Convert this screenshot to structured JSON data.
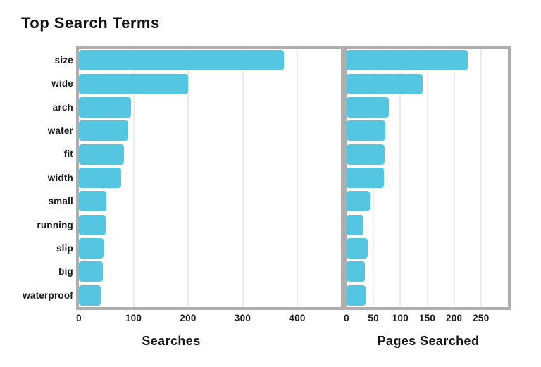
{
  "title": "Top Search Terms",
  "chart_data": {
    "type": "bar",
    "orientation": "horizontal",
    "title": "Top Search Terms",
    "categories": [
      "size",
      "wide",
      "arch",
      "water",
      "fit",
      "width",
      "small",
      "running",
      "slip",
      "big",
      "waterproof"
    ],
    "panels": [
      {
        "name": "searches",
        "xlabel": "Searches",
        "xlim": [
          0,
          480
        ],
        "xticks": [
          0,
          100,
          200,
          300,
          400
        ],
        "values": [
          375,
          200,
          95,
          90,
          82,
          78,
          50,
          49,
          45,
          44,
          40
        ]
      },
      {
        "name": "pages-searched",
        "xlabel": "Pages Searched",
        "xlim": [
          0,
          300
        ],
        "xticks": [
          0,
          50,
          100,
          150,
          200,
          250
        ],
        "values": [
          225,
          142,
          78,
          72,
          71,
          70,
          43,
          32,
          39,
          34,
          36
        ]
      }
    ],
    "grid": true,
    "legend": "none",
    "bar_color": "#55C6E1",
    "spine_color": "#AEAEAE",
    "gridline_color": "#ECECEC",
    "text_color": "#1A1A1A",
    "background": "#FFFFFF"
  }
}
